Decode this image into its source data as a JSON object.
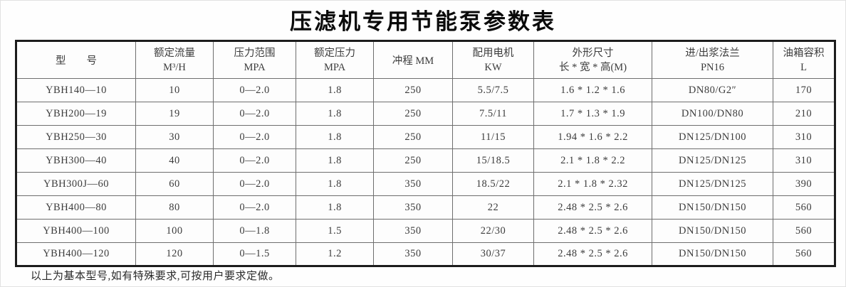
{
  "page": {
    "title": "压滤机专用节能泵参数表",
    "footnote": "以上为基本型号,如有特殊要求,可按用户要求定做。"
  },
  "table": {
    "columns": [
      {
        "key": "model",
        "line1": "型　　号",
        "line2": ""
      },
      {
        "key": "rated-flow",
        "line1": "额定流量",
        "line2": "M³/H"
      },
      {
        "key": "pressure-range",
        "line1": "压力范围",
        "line2": "MPA"
      },
      {
        "key": "rated-pressure",
        "line1": "额定压力",
        "line2": "MPA"
      },
      {
        "key": "stroke",
        "line1": "冲程 MM",
        "line2": ""
      },
      {
        "key": "motor",
        "line1": "配用电机",
        "line2": "KW"
      },
      {
        "key": "dimensions",
        "line1": "外形尺寸",
        "line2": "长 * 宽 * 高(M)"
      },
      {
        "key": "flange",
        "line1": "进/出浆法兰",
        "line2": "PN16"
      },
      {
        "key": "tank-volume",
        "line1": "油箱容积",
        "line2": "L"
      }
    ],
    "rows": [
      [
        "YBH140—10",
        "10",
        "0—2.0",
        "1.8",
        "250",
        "5.5/7.5",
        "1.6 * 1.2 * 1.6",
        "DN80/G2″",
        "170"
      ],
      [
        "YBH200—19",
        "19",
        "0—2.0",
        "1.8",
        "250",
        "7.5/11",
        "1.7 * 1.3 * 1.9",
        "DN100/DN80",
        "210"
      ],
      [
        "YBH250—30",
        "30",
        "0—2.0",
        "1.8",
        "250",
        "11/15",
        "1.94 * 1.6 * 2.2",
        "DN125/DN100",
        "310"
      ],
      [
        "YBH300—40",
        "40",
        "0—2.0",
        "1.8",
        "250",
        "15/18.5",
        "2.1 * 1.8 * 2.2",
        "DN125/DN125",
        "310"
      ],
      [
        "YBH300J—60",
        "60",
        "0—2.0",
        "1.8",
        "350",
        "18.5/22",
        "2.1 * 1.8 * 2.32",
        "DN125/DN125",
        "390"
      ],
      [
        "YBH400—80",
        "80",
        "0—2.0",
        "1.8",
        "350",
        "22",
        "2.48 * 2.5 * 2.6",
        "DN150/DN150",
        "560"
      ],
      [
        "YBH400—100",
        "100",
        "0—1.8",
        "1.5",
        "350",
        "22/30",
        "2.48 * 2.5 * 2.6",
        "DN150/DN150",
        "560"
      ],
      [
        "YBH400—120",
        "120",
        "0—1.5",
        "1.2",
        "350",
        "30/37",
        "2.48 * 2.5 * 2.6",
        "DN150/DN150",
        "560"
      ]
    ]
  }
}
